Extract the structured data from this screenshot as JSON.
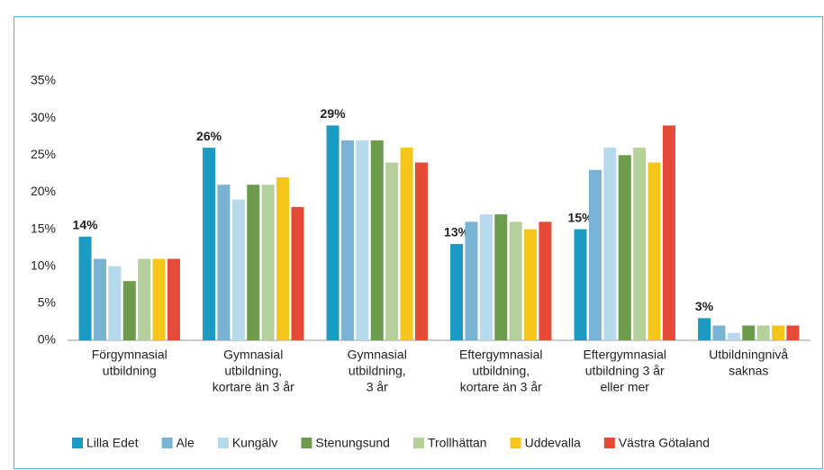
{
  "chart_data": {
    "type": "bar",
    "categories": [
      [
        "Förgymnasial",
        "utbildning"
      ],
      [
        "Gymnasial",
        "utbildning,",
        "kortare än 3 år"
      ],
      [
        "Gymnasial",
        "utbildning,",
        "3 år"
      ],
      [
        "Eftergymnasial",
        "utbildning,",
        "kortare än 3 år"
      ],
      [
        "Eftergymnasial",
        "utbildning 3 år",
        "eller mer"
      ],
      [
        "Utbildningnivå",
        "saknas"
      ]
    ],
    "series": [
      {
        "name": "Lilla Edet",
        "color": "#1b9bc2",
        "values": [
          14,
          26,
          29,
          13,
          15,
          3
        ],
        "value_labels": [
          "14%",
          "26%",
          "29%",
          "13%",
          "15%",
          "3%"
        ]
      },
      {
        "name": "Ale",
        "color": "#78b3d4",
        "values": [
          11,
          21,
          27,
          16,
          23,
          2
        ]
      },
      {
        "name": "Kungälv",
        "color": "#b6d9ec",
        "values": [
          10,
          19,
          27,
          17,
          26,
          1
        ]
      },
      {
        "name": "Stenungsund",
        "color": "#6b9b4b",
        "values": [
          8,
          21,
          27,
          17,
          25,
          2
        ]
      },
      {
        "name": "Trollhättan",
        "color": "#b6d09c",
        "values": [
          11,
          21,
          24,
          16,
          26,
          2
        ]
      },
      {
        "name": "Uddevalla",
        "color": "#f6c51a",
        "values": [
          11,
          22,
          26,
          15,
          24,
          2
        ]
      },
      {
        "name": "Västra Götaland",
        "color": "#e44a35",
        "values": [
          11,
          18,
          24,
          16,
          29,
          2
        ]
      }
    ],
    "ylim": [
      0,
      35
    ],
    "yticks": [
      {
        "value": 0,
        "label": "0%"
      },
      {
        "value": 5,
        "label": "5%"
      },
      {
        "value": 10,
        "label": "10%"
      },
      {
        "value": 15,
        "label": "15%"
      },
      {
        "value": 20,
        "label": "20%"
      },
      {
        "value": 25,
        "label": "25%"
      },
      {
        "value": 30,
        "label": "30%"
      },
      {
        "value": 35,
        "label": "35%"
      }
    ],
    "grid": false,
    "legend": "bottom"
  }
}
